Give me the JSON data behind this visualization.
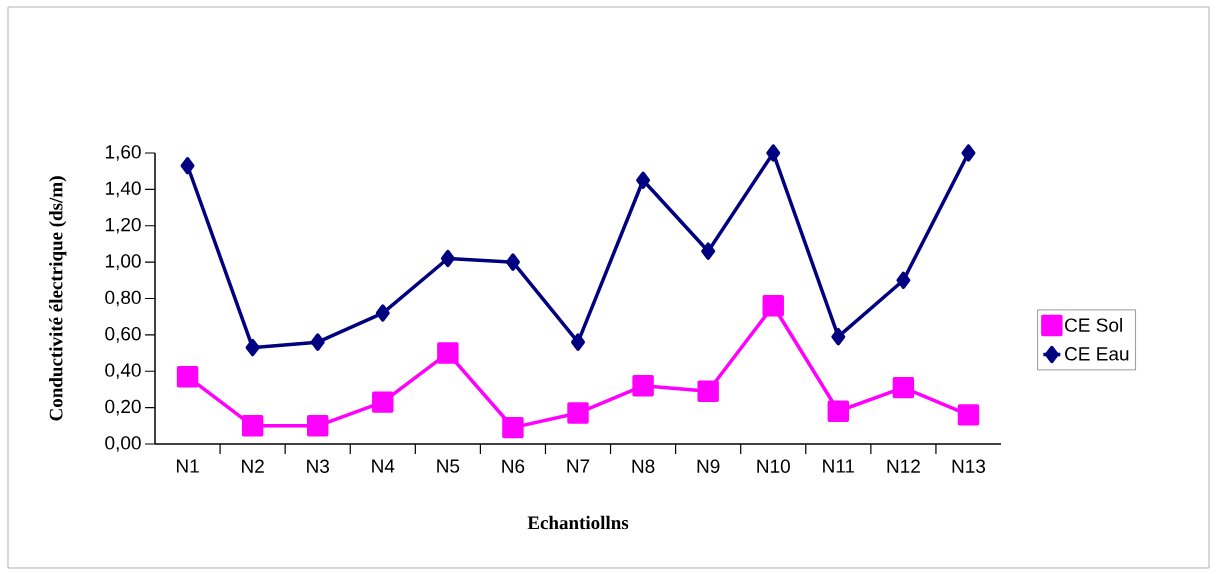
{
  "chart_data": {
    "type": "line",
    "xlabel": "Echantiollns",
    "ylabel": "Conductivité électrique (ds/m)",
    "categories": [
      "N1",
      "N2",
      "N3",
      "N4",
      "N5",
      "N6",
      "N7",
      "N8",
      "N9",
      "N10",
      "N11",
      "N12",
      "N13"
    ],
    "series": [
      {
        "name": "CE Sol",
        "color": "#ff00ff",
        "marker": "square",
        "values": [
          0.37,
          0.1,
          0.1,
          0.23,
          0.5,
          0.09,
          0.17,
          0.32,
          0.29,
          0.76,
          0.18,
          0.31,
          0.16
        ]
      },
      {
        "name": "CE Eau",
        "color": "#000080",
        "marker": "diamond",
        "values": [
          1.53,
          0.53,
          0.56,
          0.72,
          1.02,
          1.0,
          0.56,
          1.45,
          1.06,
          1.6,
          0.59,
          0.9,
          1.6
        ]
      }
    ],
    "ylim": [
      0,
      1.6
    ],
    "yticks": [
      {
        "value": 0,
        "label": "0,00"
      },
      {
        "value": 0.2,
        "label": "0,20"
      },
      {
        "value": 0.4,
        "label": "0,40"
      },
      {
        "value": 0.6,
        "label": "0,60"
      },
      {
        "value": 0.8,
        "label": "0,80"
      },
      {
        "value": 1.0,
        "label": "1,00"
      },
      {
        "value": 1.2,
        "label": "1,20"
      },
      {
        "value": 1.4,
        "label": "1,40"
      },
      {
        "value": 1.6,
        "label": "1,60"
      }
    ],
    "grid": false,
    "legend": "right",
    "line_style": "solid"
  }
}
